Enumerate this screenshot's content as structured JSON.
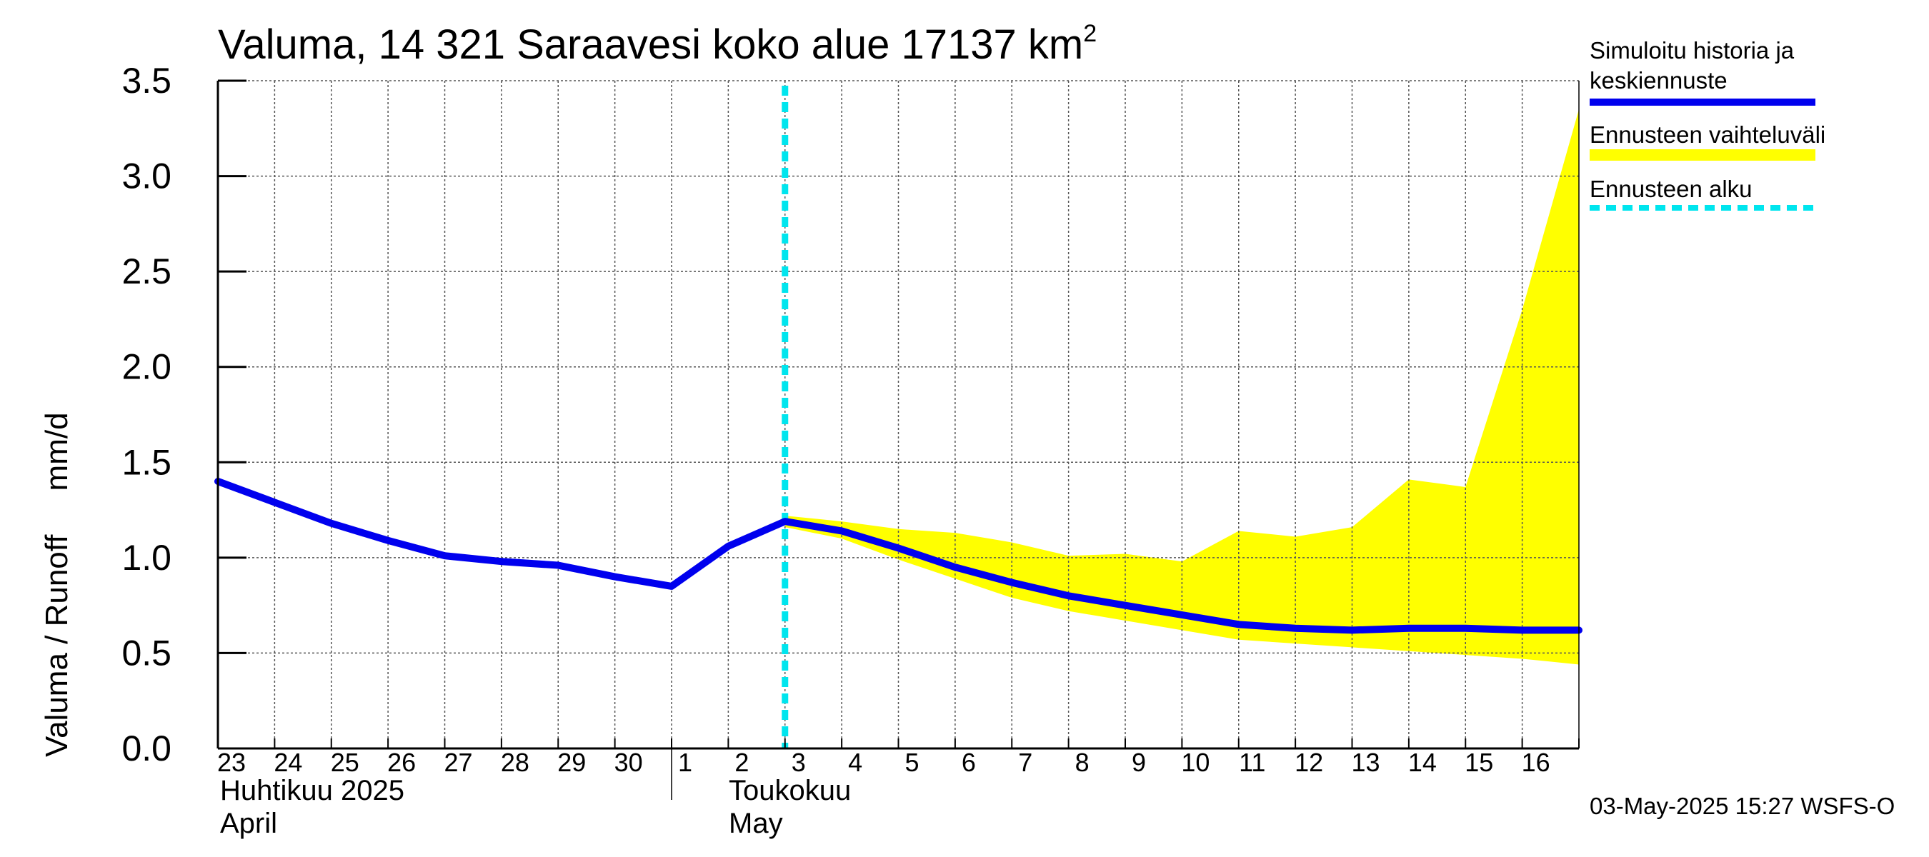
{
  "title_main": "Valuma, 14 321 Saraavesi koko alue 17137 km",
  "title_sup": "2",
  "y_axis_label": "Valuma / Runoff     mm/d",
  "month_labels": {
    "april_fi": "Huhtikuu  2025",
    "april_en": "April",
    "may_fi": "Toukokuu",
    "may_en": "May"
  },
  "legend": {
    "sim": "Simuloitu historia ja keskiennuste",
    "range": "Ennusteen vaihteluväli",
    "start": "Ennusteen alku"
  },
  "timestamp": "03-May-2025 15:27 WSFS-O",
  "colors": {
    "sim": "#0000ee",
    "range": "#ffff00",
    "start": "#00e5ee",
    "grid": "#555555",
    "axis": "#000000"
  },
  "chart_data": {
    "type": "line",
    "title": "Valuma, 14 321 Saraavesi koko alue 17137 km²",
    "ylabel": "Valuma / Runoff mm/d",
    "ylim": [
      0,
      3.5
    ],
    "yticks": [
      "0.0",
      "0.5",
      "1.0",
      "1.5",
      "2.0",
      "2.5",
      "3.0",
      "3.5"
    ],
    "xlim": [
      0,
      24
    ],
    "x_tick_labels": [
      "23",
      "24",
      "25",
      "26",
      "27",
      "28",
      "29",
      "30",
      "1",
      "2",
      "3",
      "4",
      "5",
      "6",
      "7",
      "8",
      "9",
      "10",
      "11",
      "12",
      "13",
      "14",
      "15",
      "16"
    ],
    "grid": true,
    "legend_position": "right",
    "forecast_start_x": 10,
    "series": [
      {
        "name": "Simuloitu historia ja keskiennuste",
        "x": [
          0,
          1,
          2,
          3,
          4,
          5,
          6,
          7,
          8,
          9,
          10,
          11,
          12,
          13,
          14,
          15,
          16,
          17,
          18,
          19,
          20,
          21,
          22,
          23,
          24
        ],
        "values": [
          1.4,
          1.29,
          1.18,
          1.09,
          1.01,
          0.98,
          0.96,
          0.9,
          0.85,
          1.06,
          1.19,
          1.14,
          1.05,
          0.95,
          0.87,
          0.8,
          0.75,
          0.7,
          0.65,
          0.63,
          0.62,
          0.63,
          0.63,
          0.62,
          0.62
        ]
      },
      {
        "name": "Ennusteen vaihteluväli",
        "type": "area",
        "x": [
          10,
          11,
          12,
          13,
          14,
          15,
          16,
          17,
          18,
          19,
          20,
          21,
          22,
          23,
          24
        ],
        "upper": [
          1.22,
          1.19,
          1.15,
          1.13,
          1.08,
          1.01,
          1.02,
          0.98,
          1.14,
          1.11,
          1.16,
          1.41,
          1.37,
          2.3,
          3.35
        ],
        "lower": [
          1.16,
          1.1,
          0.99,
          0.89,
          0.79,
          0.72,
          0.67,
          0.62,
          0.57,
          0.55,
          0.53,
          0.51,
          0.49,
          0.47,
          0.44
        ]
      },
      {
        "name": "Ennusteen alku",
        "type": "vline",
        "x": [
          10
        ]
      }
    ]
  }
}
